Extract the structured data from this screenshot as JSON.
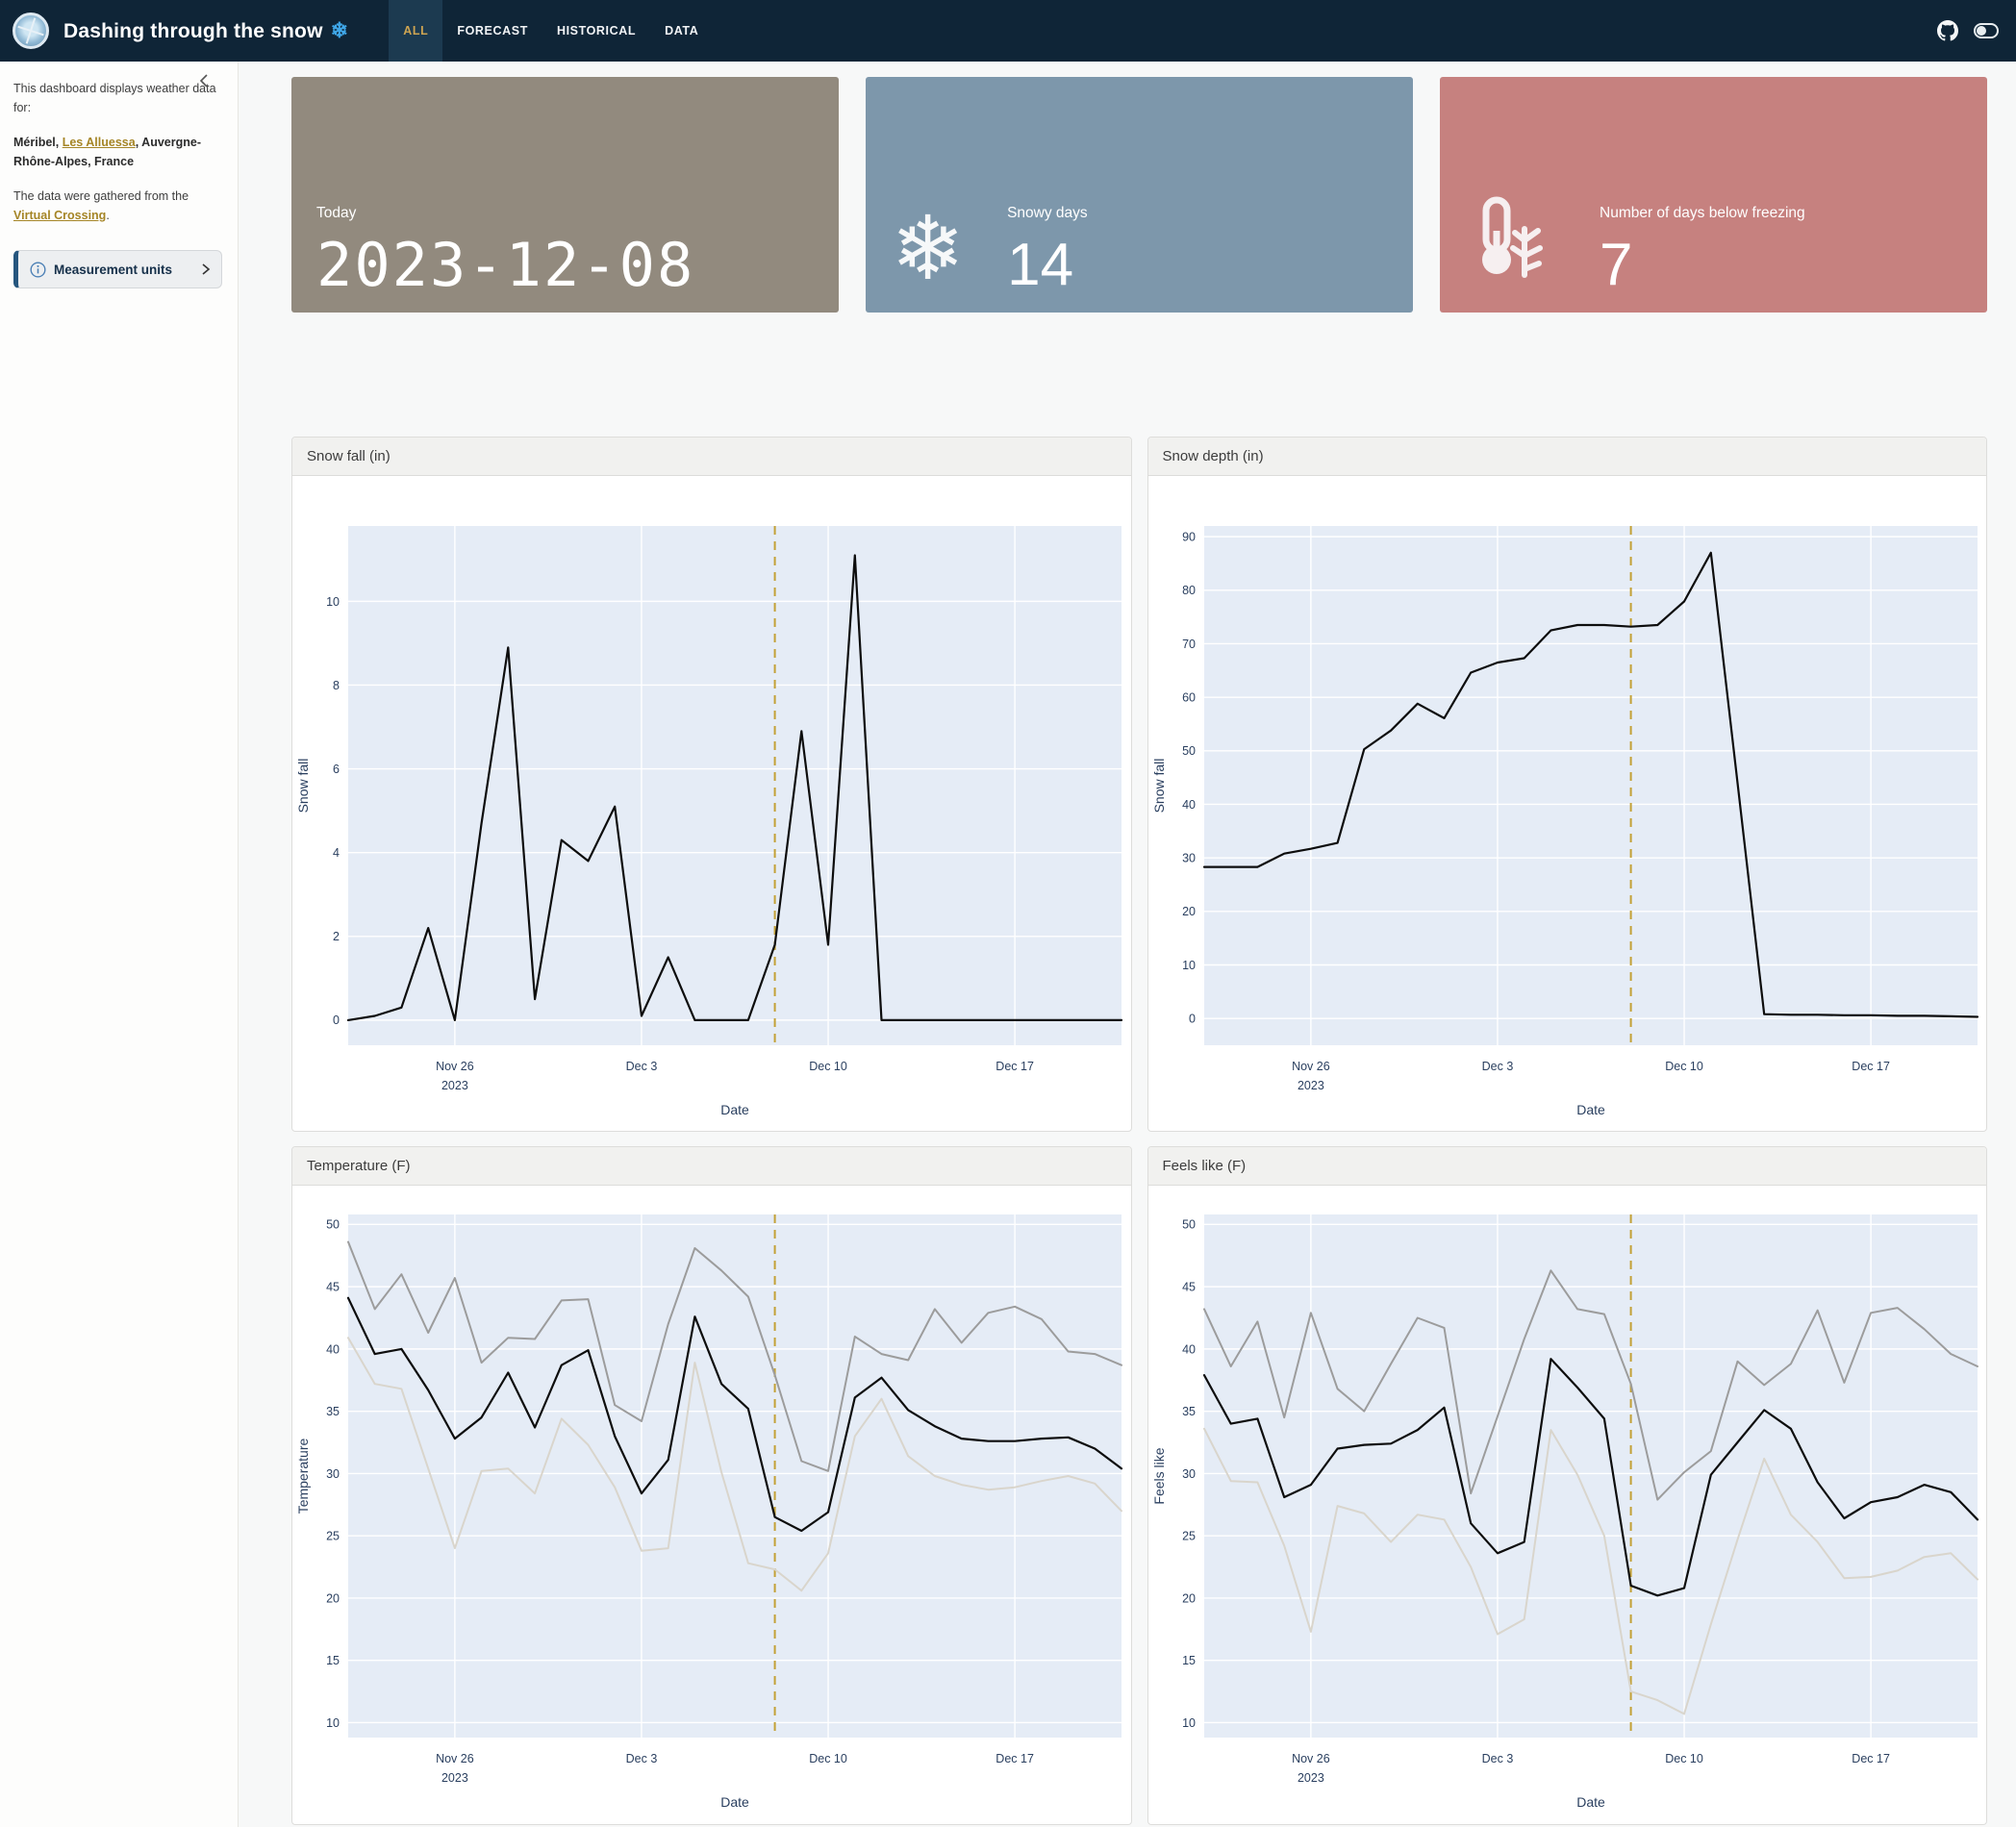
{
  "header": {
    "title": "Dashing through the snow",
    "title_icon_glyph": "❄",
    "nav": [
      {
        "label": "ALL",
        "active": true
      },
      {
        "label": "FORECAST",
        "active": false
      },
      {
        "label": "HISTORICAL",
        "active": false
      },
      {
        "label": "DATA",
        "active": false
      }
    ]
  },
  "sidebar": {
    "intro": "This dashboard displays weather data for:",
    "location": {
      "prefix": "Méribel, ",
      "link": "Les Alluessa",
      "suffix": ", Auvergne-Rhône-Alpes, France"
    },
    "source": {
      "prefix": "The data were gathered from the ",
      "link": "Virtual Crossing",
      "suffix": "."
    },
    "accordion_label": "Measurement units"
  },
  "stats": [
    {
      "label": "Today",
      "value": "2023-12-08",
      "color": "#928a7e",
      "icon": "none"
    },
    {
      "label": "Snowy days",
      "value": "14",
      "color": "#7d97ab",
      "icon": "snowflake-icon",
      "glyph": "❄"
    },
    {
      "label": "Number of days below freezing",
      "value": "7",
      "color": "#c6817f",
      "icon": "thermometer-snowflake-icon"
    }
  ],
  "chart_data": {
    "dates": [
      "Nov 22",
      "Nov 23",
      "Nov 24",
      "Nov 25",
      "Nov 26",
      "Nov 27",
      "Nov 28",
      "Nov 29",
      "Nov 30",
      "Dec 1",
      "Dec 2",
      "Dec 3",
      "Dec 4",
      "Dec 5",
      "Dec 6",
      "Dec 7",
      "Dec 8",
      "Dec 9",
      "Dec 10",
      "Dec 11",
      "Dec 12",
      "Dec 13",
      "Dec 14",
      "Dec 15",
      "Dec 16",
      "Dec 17",
      "Dec 18",
      "Dec 19",
      "Dec 20",
      "Dec 21"
    ],
    "xticks": [
      {
        "index": 4,
        "label": "Nov 26",
        "sub": "2023"
      },
      {
        "index": 11,
        "label": "Dec 3",
        "sub": ""
      },
      {
        "index": 18,
        "label": "Dec 10",
        "sub": ""
      },
      {
        "index": 25,
        "label": "Dec 17",
        "sub": ""
      }
    ],
    "today_line": {
      "index": 16,
      "date": "2023-12-08",
      "color": "#c3a136"
    },
    "plot_bg": "#e5ecf6",
    "charts": [
      {
        "type": "line",
        "title": "Snow fall (in)",
        "xlabel": "Date",
        "ylabel": "Snow fall",
        "ylim": [
          -0.6,
          11.8
        ],
        "yticks": [
          0,
          2,
          4,
          6,
          8,
          10
        ],
        "series": [
          {
            "name": "snow fall",
            "color": "#0d0d0d",
            "width": 2.2,
            "values": [
              0,
              0.1,
              0.3,
              2.2,
              0,
              4.7,
              8.9,
              0.5,
              4.3,
              3.8,
              5.1,
              0.1,
              1.5,
              0,
              0,
              0,
              1.8,
              6.9,
              1.8,
              11.1,
              0,
              0,
              0,
              0,
              0,
              0,
              0,
              0,
              0,
              0
            ]
          }
        ]
      },
      {
        "type": "line",
        "title": "Snow depth (in)",
        "xlabel": "Date",
        "ylabel": "Snow fall",
        "ylim": [
          -5,
          92
        ],
        "yticks": [
          0,
          10,
          20,
          30,
          40,
          50,
          60,
          70,
          80,
          90
        ],
        "series": [
          {
            "name": "snow depth",
            "color": "#0d0d0d",
            "width": 2.2,
            "values": [
              28.3,
              28.3,
              28.3,
              30.8,
              31.7,
              32.8,
              50.3,
              53.8,
              58.8,
              56.1,
              64.6,
              66.5,
              67.3,
              72.5,
              73.5,
              73.5,
              73.2,
              73.5,
              77.9,
              87.0,
              44.0,
              0.8,
              0.7,
              0.7,
              0.6,
              0.6,
              0.5,
              0.5,
              0.4,
              0.3
            ]
          }
        ]
      },
      {
        "type": "line",
        "title": "Temperature (F)",
        "xlabel": "Date",
        "ylabel": "Temperature",
        "ylim": [
          8.8,
          50.8
        ],
        "yticks": [
          10,
          15,
          20,
          25,
          30,
          35,
          40,
          45,
          50
        ],
        "series": [
          {
            "name": "temp max",
            "color": "#9c9c9c",
            "width": 2,
            "values": [
              48.6,
              43.2,
              46.0,
              41.3,
              45.7,
              38.9,
              40.9,
              40.8,
              43.9,
              44.0,
              35.5,
              34.2,
              42.0,
              48.1,
              46.3,
              44.2,
              37.9,
              31.0,
              30.2,
              41.0,
              39.6,
              39.1,
              43.2,
              40.5,
              42.9,
              43.4,
              42.4,
              39.8,
              39.6,
              38.7
            ]
          },
          {
            "name": "temp min",
            "color": "#d9d5cc",
            "width": 2,
            "values": [
              40.9,
              37.2,
              36.8,
              30.4,
              24.0,
              30.2,
              30.4,
              28.4,
              34.4,
              32.3,
              28.9,
              23.8,
              24.0,
              38.9,
              30.1,
              22.8,
              22.3,
              20.6,
              23.6,
              33.0,
              36.0,
              31.4,
              29.8,
              29.1,
              28.7,
              28.9,
              29.4,
              29.8,
              29.2,
              27.0
            ]
          },
          {
            "name": "temp",
            "color": "#0d0d0d",
            "width": 2.2,
            "values": [
              44.1,
              39.6,
              40.0,
              36.7,
              32.8,
              34.5,
              38.1,
              33.7,
              38.7,
              39.9,
              33.0,
              28.4,
              31.1,
              42.6,
              37.2,
              35.2,
              26.5,
              25.4,
              26.9,
              36.1,
              37.7,
              35.1,
              33.8,
              32.8,
              32.6,
              32.6,
              32.8,
              32.9,
              32.0,
              30.4
            ]
          }
        ]
      },
      {
        "type": "line",
        "title": "Feels like (F)",
        "xlabel": "Date",
        "ylabel": "Feels like",
        "ylim": [
          8.8,
          50.8
        ],
        "yticks": [
          10,
          15,
          20,
          25,
          30,
          35,
          40,
          45,
          50
        ],
        "series": [
          {
            "name": "feels like max",
            "color": "#9c9c9c",
            "width": 2,
            "values": [
              43.2,
              38.6,
              42.2,
              34.5,
              42.9,
              36.8,
              35.0,
              38.8,
              42.5,
              41.7,
              28.4,
              34.6,
              40.8,
              46.3,
              43.2,
              42.8,
              37.2,
              27.9,
              30.1,
              31.8,
              39.0,
              37.1,
              38.8,
              43.1,
              37.3,
              42.9,
              43.3,
              41.6,
              39.6,
              38.6
            ]
          },
          {
            "name": "feels like min",
            "color": "#d9d5cc",
            "width": 2,
            "values": [
              33.6,
              29.4,
              29.3,
              24.2,
              17.3,
              27.4,
              26.8,
              24.5,
              26.7,
              26.3,
              22.5,
              17.1,
              18.3,
              33.5,
              29.9,
              25.0,
              12.5,
              11.8,
              10.7,
              17.9,
              24.7,
              31.2,
              26.7,
              24.5,
              21.6,
              21.7,
              22.2,
              23.3,
              23.6,
              21.5
            ]
          },
          {
            "name": "feels like",
            "color": "#0d0d0d",
            "width": 2.2,
            "values": [
              37.9,
              34.0,
              34.4,
              28.1,
              29.1,
              32.0,
              32.3,
              32.4,
              33.5,
              35.3,
              26.0,
              23.6,
              24.5,
              39.2,
              36.9,
              34.4,
              21.0,
              20.2,
              20.8,
              29.9,
              32.5,
              35.1,
              33.6,
              29.3,
              26.4,
              27.7,
              28.1,
              29.1,
              28.5,
              26.3
            ]
          }
        ]
      }
    ]
  }
}
